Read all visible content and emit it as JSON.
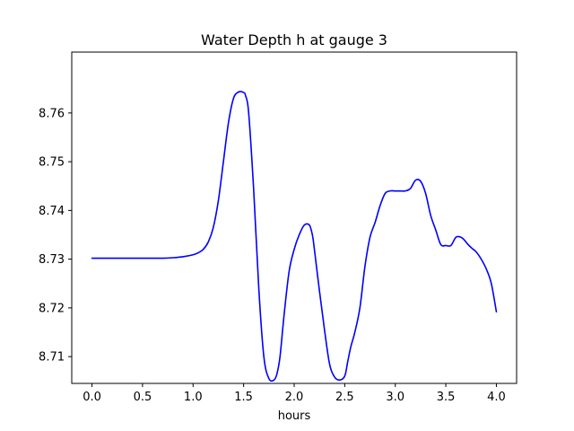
{
  "chart_data": {
    "type": "line",
    "title": "Water Depth h at gauge 3",
    "xlabel": "hours",
    "ylabel": "",
    "xlim": [
      -0.2,
      4.2
    ],
    "ylim": [
      8.7045,
      8.7725
    ],
    "xticks": [
      0.0,
      0.5,
      1.0,
      1.5,
      2.0,
      2.5,
      3.0,
      3.5,
      4.0
    ],
    "xtick_labels": [
      "0.0",
      "0.5",
      "1.0",
      "1.5",
      "2.0",
      "2.5",
      "3.0",
      "3.5",
      "4.0"
    ],
    "yticks": [
      8.71,
      8.72,
      8.73,
      8.74,
      8.75,
      8.76
    ],
    "ytick_labels": [
      "8.71",
      "8.72",
      "8.73",
      "8.74",
      "8.75",
      "8.76"
    ],
    "grid": false,
    "series": [
      {
        "color": "#0000ff",
        "x": [
          0.0,
          0.2,
          0.4,
          0.6,
          0.7,
          0.8,
          0.9,
          1.0,
          1.05,
          1.1,
          1.15,
          1.2,
          1.25,
          1.3,
          1.35,
          1.4,
          1.45,
          1.5,
          1.52,
          1.55,
          1.6,
          1.65,
          1.7,
          1.75,
          1.8,
          1.83,
          1.86,
          1.9,
          1.95,
          2.0,
          2.05,
          2.1,
          2.15,
          2.18,
          2.2,
          2.25,
          2.3,
          2.35,
          2.4,
          2.45,
          2.5,
          2.53,
          2.56,
          2.6,
          2.65,
          2.7,
          2.75,
          2.8,
          2.85,
          2.9,
          2.95,
          3.0,
          3.05,
          3.1,
          3.15,
          3.2,
          3.25,
          3.3,
          3.35,
          3.4,
          3.45,
          3.5,
          3.55,
          3.6,
          3.65,
          3.68,
          3.72,
          3.76,
          3.8,
          3.85,
          3.9,
          3.95,
          4.0
        ],
        "values": [
          8.7302,
          8.7302,
          8.7302,
          8.7302,
          8.7302,
          8.7303,
          8.7305,
          8.7309,
          8.7313,
          8.732,
          8.7335,
          8.7365,
          8.742,
          8.75,
          8.758,
          8.763,
          8.7643,
          8.7642,
          8.7635,
          8.76,
          8.744,
          8.724,
          8.71,
          8.7055,
          8.7052,
          8.7065,
          8.71,
          8.7185,
          8.7275,
          8.732,
          8.735,
          8.737,
          8.737,
          8.735,
          8.732,
          8.7235,
          8.7155,
          8.7085,
          8.7058,
          8.7052,
          8.706,
          8.709,
          8.712,
          8.715,
          8.72,
          8.7285,
          8.7345,
          8.7375,
          8.741,
          8.7435,
          8.744,
          8.744,
          8.744,
          8.744,
          8.7445,
          8.7462,
          8.746,
          8.7435,
          8.739,
          8.736,
          8.733,
          8.7328,
          8.7328,
          8.7345,
          8.7345,
          8.734,
          8.733,
          8.7322,
          8.7315,
          8.73,
          8.728,
          8.725,
          8.7192
        ]
      }
    ]
  }
}
